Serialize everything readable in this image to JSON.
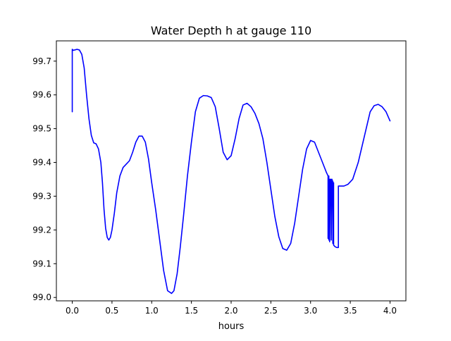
{
  "chart_data": {
    "type": "line",
    "title": "Water Depth h at gauge 110",
    "xlabel": "hours",
    "ylabel": "",
    "xlim": [
      -0.2,
      4.2
    ],
    "ylim": [
      98.99,
      99.76
    ],
    "xticks": [
      0.0,
      0.5,
      1.0,
      1.5,
      2.0,
      2.5,
      3.0,
      3.5,
      4.0
    ],
    "xtick_labels": [
      "0.0",
      "0.5",
      "1.0",
      "1.5",
      "2.0",
      "2.5",
      "3.0",
      "3.5",
      "4.0"
    ],
    "yticks": [
      99.0,
      99.1,
      99.2,
      99.3,
      99.4,
      99.5,
      99.6,
      99.7
    ],
    "ytick_labels": [
      "99.0",
      "99.1",
      "99.2",
      "99.3",
      "99.4",
      "99.5",
      "99.6",
      "99.7"
    ],
    "grid": false,
    "series": [
      {
        "color": "#0000ff",
        "x": [
          0.0,
          0.0,
          0.01,
          0.03,
          0.06,
          0.09,
          0.12,
          0.15,
          0.18,
          0.21,
          0.24,
          0.27,
          0.3,
          0.33,
          0.36,
          0.38,
          0.4,
          0.42,
          0.44,
          0.46,
          0.48,
          0.5,
          0.53,
          0.56,
          0.6,
          0.64,
          0.68,
          0.72,
          0.76,
          0.8,
          0.84,
          0.88,
          0.92,
          0.96,
          1.0,
          1.05,
          1.1,
          1.15,
          1.2,
          1.25,
          1.28,
          1.32,
          1.36,
          1.4,
          1.45,
          1.5,
          1.55,
          1.6,
          1.65,
          1.7,
          1.75,
          1.8,
          1.85,
          1.9,
          1.95,
          2.0,
          2.05,
          2.1,
          2.15,
          2.2,
          2.25,
          2.3,
          2.35,
          2.4,
          2.45,
          2.5,
          2.55,
          2.6,
          2.65,
          2.7,
          2.75,
          2.8,
          2.85,
          2.9,
          2.95,
          3.0,
          3.05,
          3.1,
          3.15,
          3.2,
          3.22,
          3.22,
          3.23,
          3.23,
          3.24,
          3.24,
          3.25,
          3.25,
          3.26,
          3.26,
          3.27,
          3.27,
          3.28,
          3.28,
          3.29,
          3.29,
          3.31,
          3.33,
          3.35,
          3.35,
          3.38,
          3.42,
          3.47,
          3.53,
          3.6,
          3.65,
          3.7,
          3.75,
          3.8,
          3.85,
          3.9,
          3.95,
          4.0
        ],
        "y": [
          99.55,
          99.735,
          99.732,
          99.733,
          99.735,
          99.733,
          99.72,
          99.68,
          99.6,
          99.53,
          99.48,
          99.458,
          99.455,
          99.44,
          99.4,
          99.34,
          99.26,
          99.205,
          99.178,
          99.17,
          99.178,
          99.2,
          99.25,
          99.31,
          99.36,
          99.385,
          99.395,
          99.405,
          99.43,
          99.46,
          99.478,
          99.478,
          99.46,
          99.41,
          99.34,
          99.26,
          99.17,
          99.08,
          99.02,
          99.012,
          99.02,
          99.07,
          99.15,
          99.24,
          99.36,
          99.46,
          99.55,
          99.59,
          99.598,
          99.597,
          99.592,
          99.565,
          99.5,
          99.43,
          99.408,
          99.42,
          99.47,
          99.53,
          99.57,
          99.575,
          99.565,
          99.545,
          99.515,
          99.47,
          99.4,
          99.32,
          99.24,
          99.18,
          99.145,
          99.14,
          99.16,
          99.22,
          99.3,
          99.38,
          99.44,
          99.465,
          99.46,
          99.43,
          99.4,
          99.37,
          99.36,
          99.175,
          99.36,
          99.17,
          99.35,
          99.165,
          99.35,
          99.35,
          99.35,
          99.17,
          99.35,
          99.345,
          99.345,
          99.16,
          99.34,
          99.155,
          99.15,
          99.148,
          99.148,
          99.33,
          99.33,
          99.33,
          99.335,
          99.35,
          99.4,
          99.45,
          99.5,
          99.55,
          99.568,
          99.572,
          99.565,
          99.55,
          99.523
        ]
      }
    ]
  }
}
